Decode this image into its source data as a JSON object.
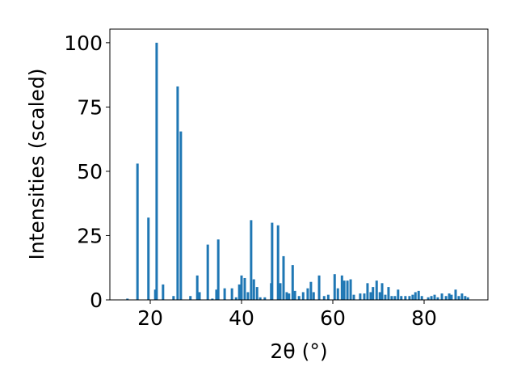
{
  "chart_data": {
    "type": "bar",
    "xlabel": "2θ (°)",
    "ylabel": "Intensities (scaled)",
    "color": "#1f77b4",
    "x": [
      15.0,
      17.2,
      19.6,
      21.1,
      21.4,
      22.8,
      25.1,
      26.0,
      26.7,
      28.8,
      30.3,
      30.8,
      32.6,
      33.6,
      34.5,
      34.9,
      36.3,
      37.9,
      38.8,
      39.5,
      40.0,
      40.7,
      41.4,
      42.1,
      42.7,
      43.4,
      44.1,
      45.1,
      46.5,
      46.7,
      48.0,
      48.5,
      49.2,
      49.9,
      50.4,
      51.2,
      51.7,
      52.6,
      53.5,
      54.5,
      55.2,
      55.8,
      57.0,
      58.1,
      59.0,
      60.4,
      61.1,
      62.0,
      62.5,
      63.2,
      63.9,
      64.6,
      66.0,
      66.9,
      67.6,
      68.3,
      68.8,
      69.6,
      70.3,
      70.8,
      71.5,
      72.2,
      72.9,
      73.6,
      74.3,
      75.0,
      75.9,
      76.8,
      77.5,
      78.1,
      78.8,
      79.5,
      80.9,
      81.6,
      82.3,
      83.0,
      83.9,
      84.8,
      85.5,
      86.0,
      86.9,
      87.6,
      88.3,
      89.0,
      89.6
    ],
    "values": [
      0.5,
      53,
      32,
      4,
      100,
      6,
      1.5,
      83,
      65.5,
      1.5,
      9.5,
      3,
      21.5,
      0.5,
      4,
      23.5,
      4.5,
      4.5,
      1,
      6,
      9.5,
      8.5,
      3,
      31,
      8,
      5,
      1,
      1,
      6.5,
      30,
      29,
      6.5,
      17,
      3,
      2.5,
      13.5,
      3.5,
      1.5,
      3,
      4.5,
      7,
      3,
      9.5,
      1.5,
      2,
      10,
      4.5,
      9.5,
      7.5,
      7.5,
      8,
      2,
      2.5,
      2.5,
      6.5,
      3,
      5,
      7.5,
      3,
      6.5,
      2,
      5,
      1.5,
      1.5,
      4,
      1.5,
      1.5,
      1.5,
      2,
      3,
      3.5,
      1.5,
      1,
      1.5,
      2,
      1,
      2.5,
      1.5,
      2.5,
      2,
      4,
      1.5,
      2.5,
      1.5,
      1
    ],
    "xlim": [
      11.15,
      93.98
    ],
    "ylim": [
      0,
      105.3
    ],
    "xticks": [
      20,
      40,
      60,
      80
    ],
    "yticks": [
      0,
      25,
      50,
      75,
      100
    ]
  }
}
